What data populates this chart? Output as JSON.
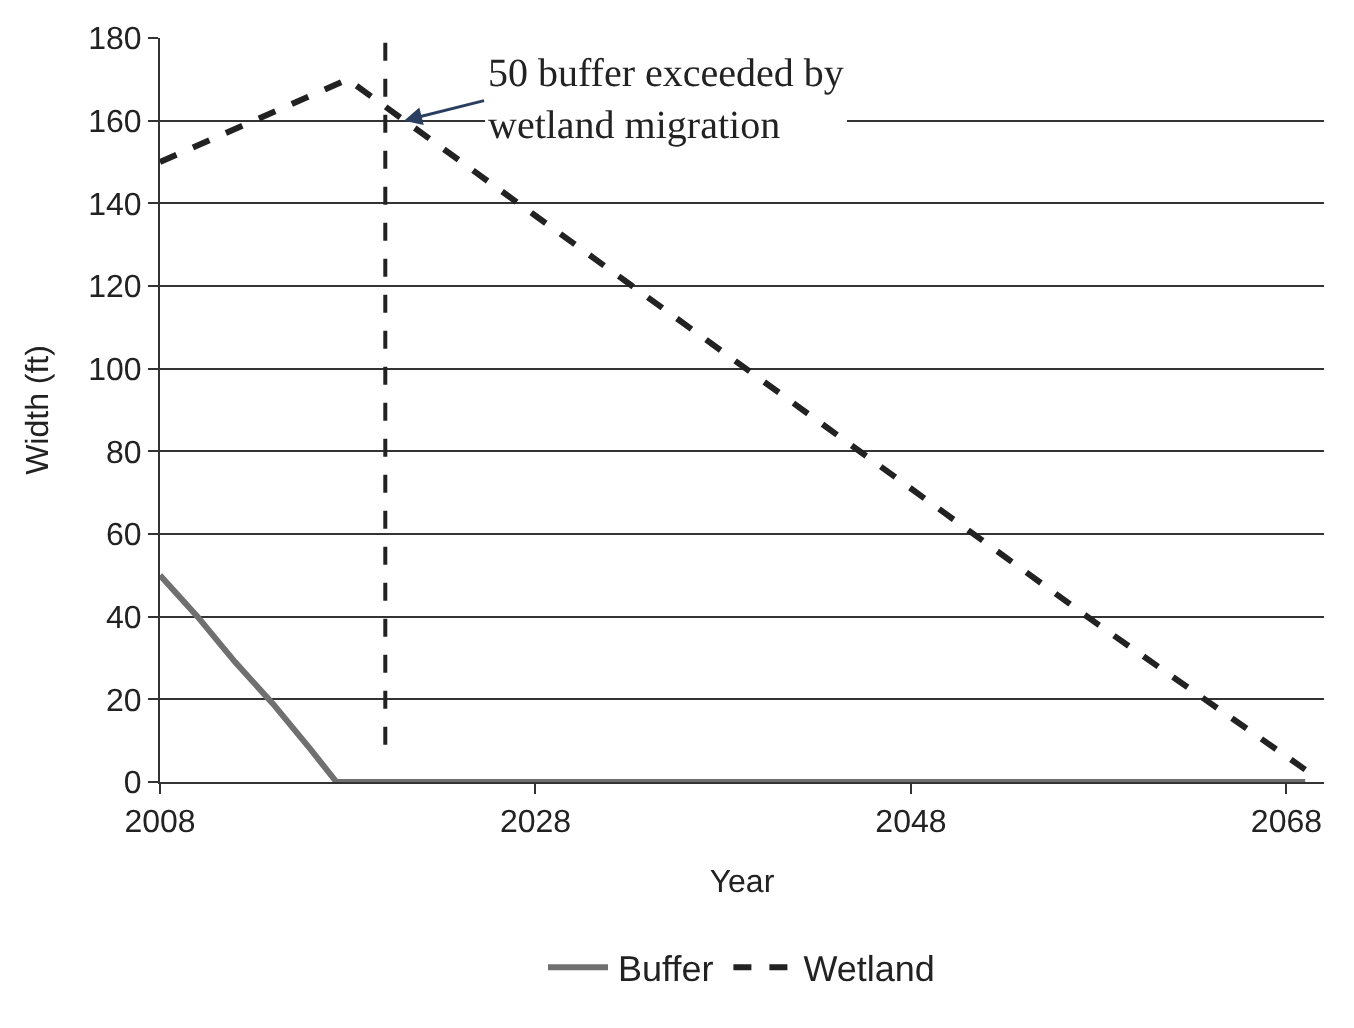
{
  "chart_data": {
    "type": "line",
    "xlabel": "Year",
    "ylabel": "Width (ft)",
    "series": [
      {
        "name": "Buffer",
        "color": "#707070",
        "line_style": "solid",
        "x": [
          2008,
          2010,
          2012,
          2014,
          2016,
          2017.4,
          2069
        ],
        "values": [
          50,
          40,
          29,
          19,
          8,
          0,
          0
        ]
      },
      {
        "name": "Wetland",
        "color": "#222222",
        "line_style": "dashed",
        "x": [
          2008,
          2018,
          2028,
          2038,
          2048,
          2058,
          2069
        ],
        "values": [
          150,
          170,
          137,
          104,
          71,
          38,
          3
        ]
      }
    ],
    "xlim": [
      2008,
      2070
    ],
    "xticks": [
      2008,
      2028,
      2048,
      2068
    ],
    "ylim": [
      0,
      180
    ],
    "yticks": [
      0,
      20,
      40,
      60,
      80,
      100,
      120,
      140,
      160,
      180
    ],
    "grid": "y",
    "legend": "bottom",
    "marker": "none",
    "ref_lines": [
      {
        "axis": "x",
        "value": 2020,
        "color": "#222222",
        "line_style": "dashed"
      }
    ],
    "annotations": [
      {
        "text": "50 buffer exceeded by\nwetland migration",
        "x": 2021,
        "y": 160
      }
    ]
  }
}
